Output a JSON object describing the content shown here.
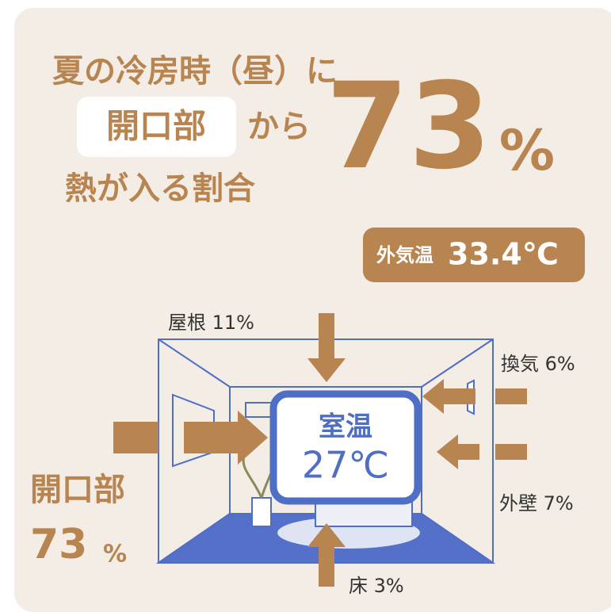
{
  "headline": {
    "line1": "夏の冷房時（昼）に",
    "highlight": "開口部",
    "line2_rest": "から",
    "line3": "熱が入る割合"
  },
  "big_figure": {
    "value": "73",
    "unit": "%"
  },
  "outdoor_temp": {
    "label": "外気温",
    "value": "33.4℃"
  },
  "room": {
    "label": "室温",
    "value": "27℃"
  },
  "sources": [
    {
      "label": "屋根",
      "value": "11%"
    },
    {
      "label": "換気",
      "value": "6%"
    },
    {
      "label": "外壁",
      "value": "7%"
    },
    {
      "label": "床",
      "value": "3%"
    }
  ],
  "openings": {
    "label": "開口部",
    "value": "73",
    "unit": "%"
  }
}
